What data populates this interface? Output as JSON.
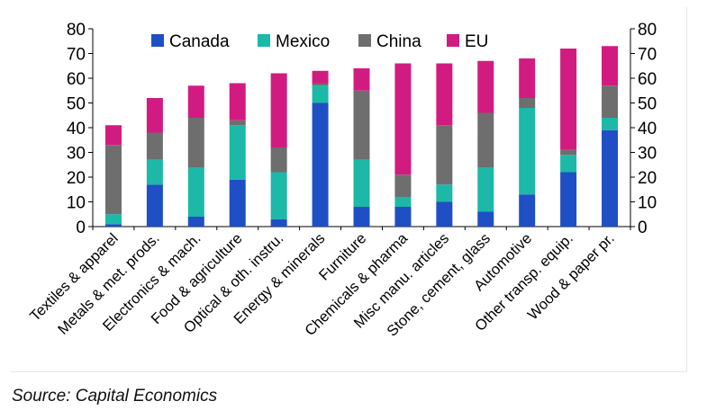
{
  "source": "Source: Capital Economics",
  "chart_data": {
    "type": "bar",
    "stacked": true,
    "categories": [
      "Textiles & apparel",
      "Metals & met. prods.",
      "Electronics & mach.",
      "Food & agriculture",
      "Optical & oth. instru.",
      "Energy & minerals",
      "Furniture",
      "Chemicals & pharma",
      "Misc manu. articles",
      "Stone, cement, glass",
      "Automotive",
      "Other transp. equip.",
      "Wood & paper pr."
    ],
    "series": [
      {
        "name": "Canada",
        "color": "#1f4fc4",
        "values": [
          1,
          17,
          4,
          19,
          3,
          50,
          8,
          8,
          10,
          6,
          13,
          22,
          39
        ]
      },
      {
        "name": "Mexico",
        "color": "#1cb8a8",
        "values": [
          4,
          10,
          20,
          22,
          19,
          7,
          19,
          4,
          7,
          18,
          35,
          7,
          5
        ]
      },
      {
        "name": "China",
        "color": "#6e6e6e",
        "values": [
          28,
          11,
          20,
          2,
          10,
          1,
          28,
          9,
          24,
          22,
          4,
          2,
          13
        ]
      },
      {
        "name": "EU",
        "color": "#d21b80",
        "values": [
          8,
          14,
          13,
          15,
          30,
          5,
          9,
          45,
          25,
          21,
          16,
          41,
          16
        ]
      }
    ],
    "ylim": [
      0,
      80
    ],
    "yticks": [
      0,
      10,
      20,
      30,
      40,
      50,
      60,
      70,
      80
    ],
    "dual_y_axis": true,
    "legend_position": "top",
    "grid": false
  }
}
